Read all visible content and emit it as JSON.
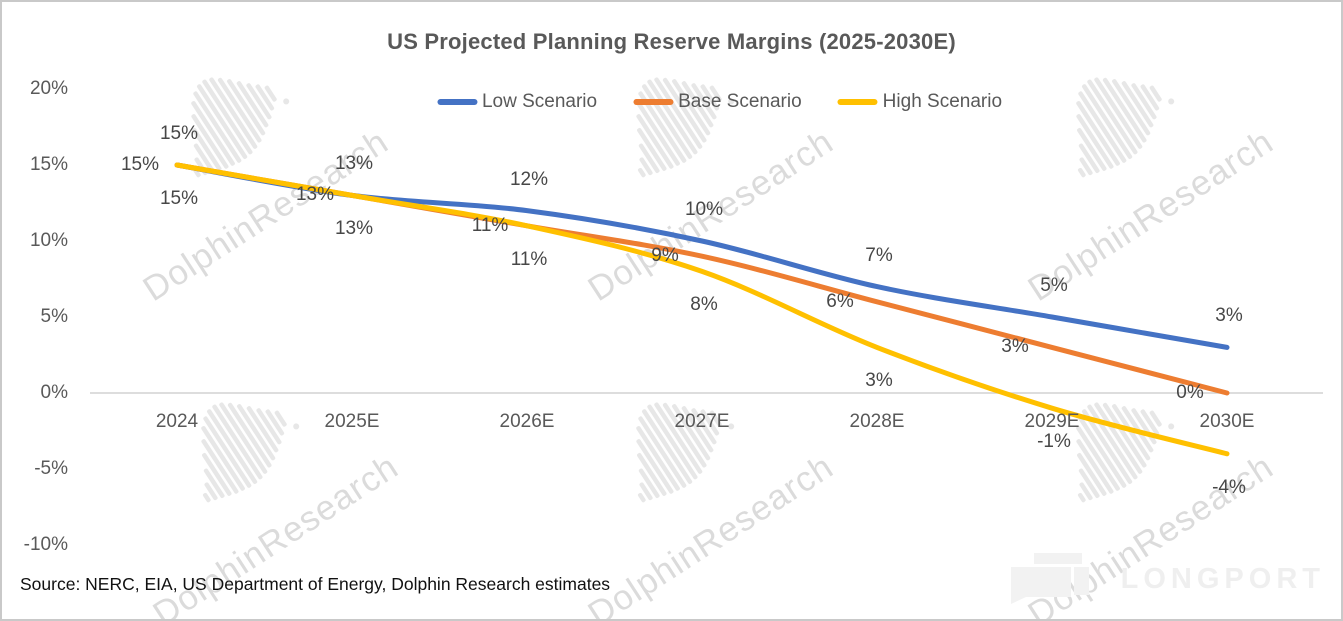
{
  "title": "US Projected Planning Reserve Margins (2025-2030E)",
  "source_note": "Source: NERC, EIA, US Department of Energy, Dolphin Research estimates",
  "watermark": {
    "text": "DolphinResearch"
  },
  "brand": {
    "logo_text": "LONGPORT"
  },
  "colors": {
    "low": "#4472C4",
    "base": "#ED7D31",
    "high": "#FFC000",
    "axis_text": "#595959",
    "data_label_text": "#474747",
    "zero_gridline": "#d2d2d2",
    "frame_border": "#c9c9c9",
    "watermark_gray": "#dedede",
    "brand_gray": "#f2f2f2"
  },
  "chart_data": {
    "type": "line",
    "title": "US Projected Planning Reserve Margins (2025-2030E)",
    "categories": [
      "2024",
      "2025E",
      "2026E",
      "2027E",
      "2028E",
      "2029E",
      "2030E"
    ],
    "series": [
      {
        "name": "Low Scenario",
        "color": "#4472C4",
        "values": [
          15,
          13,
          12,
          10,
          7,
          5,
          3
        ]
      },
      {
        "name": "Base Scenario",
        "color": "#ED7D31",
        "values": [
          15,
          13,
          11,
          9,
          6,
          3,
          0
        ]
      },
      {
        "name": "High Scenario",
        "color": "#FFC000",
        "values": [
          15,
          13,
          11,
          8,
          3,
          -1,
          -4
        ]
      }
    ],
    "y_ticks": [
      "20%",
      "15%",
      "10%",
      "5%",
      "0%",
      "-5%",
      "-10%"
    ],
    "y_tick_values": [
      20,
      15,
      10,
      5,
      0,
      -5,
      -10
    ],
    "ylim": [
      -10,
      20
    ],
    "grid": "zero-line-only",
    "legend_position": "top-center",
    "data_labels": "all points, value + %",
    "line_style": "smooth, rounded caps, ~5px"
  }
}
